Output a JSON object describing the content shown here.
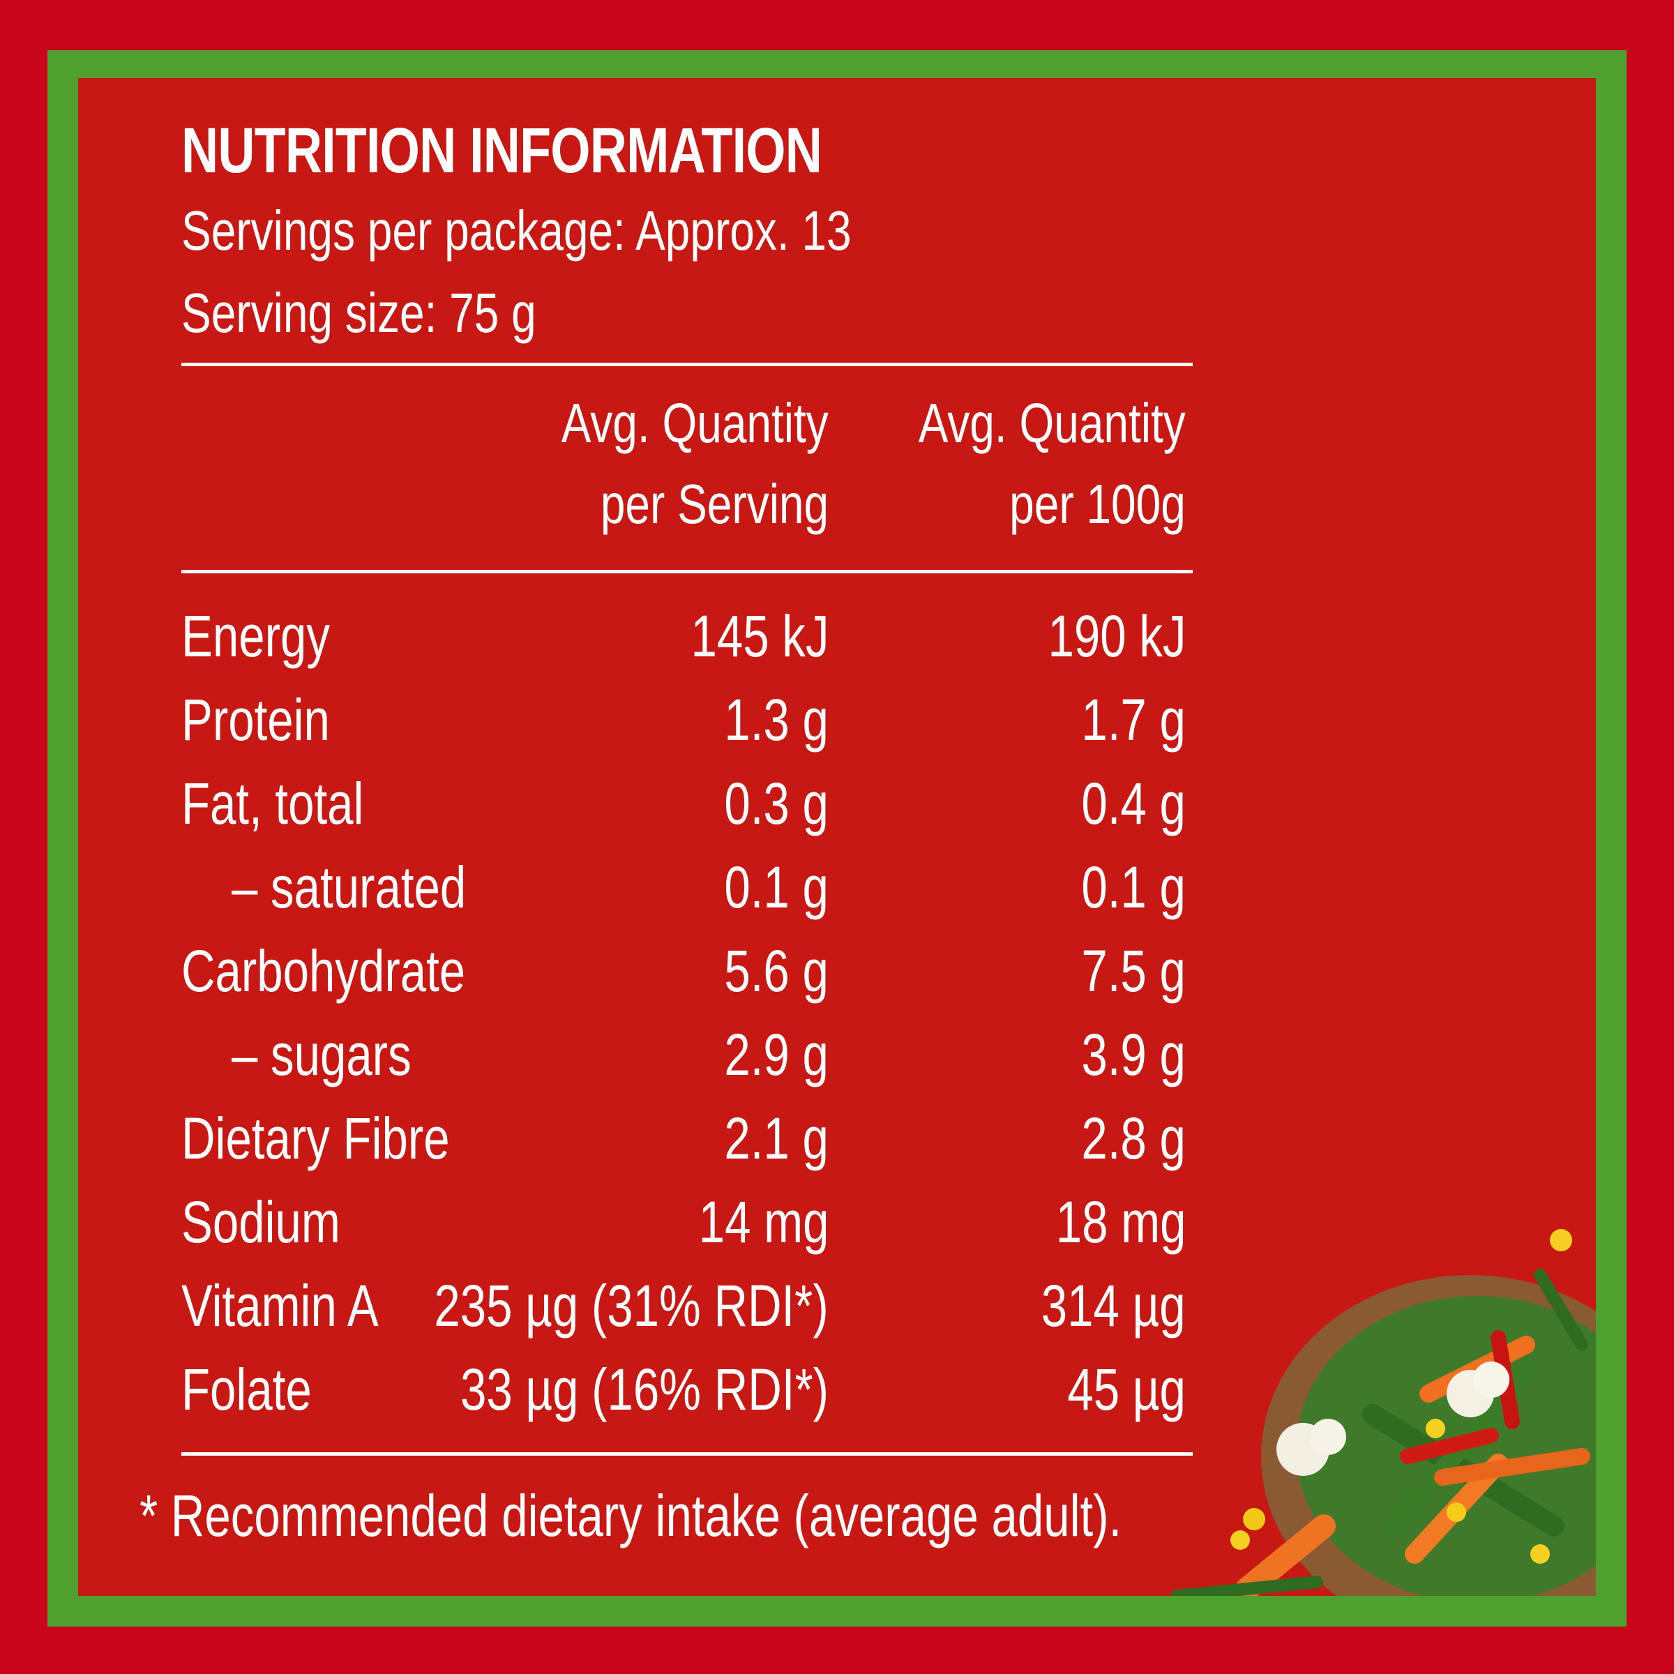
{
  "title": "NUTRITION INFORMATION",
  "servings_per_package": "Servings per package: Approx. 13",
  "serving_size": "Serving size: 75 g",
  "columns": {
    "per_serving_line1": "Avg. Quantity",
    "per_serving_line2": "per Serving",
    "per_100g_line1": "Avg. Quantity",
    "per_100g_line2": "per 100g"
  },
  "rows": [
    {
      "label": "Energy",
      "serving": "145 kJ",
      "per100": "190 kJ"
    },
    {
      "label": "Protein",
      "serving": "1.3 g",
      "per100": "1.7 g"
    },
    {
      "label": "Fat, total",
      "serving": "0.3 g",
      "per100": "0.4 g"
    },
    {
      "label": "– saturated",
      "serving": "0.1 g",
      "per100": "0.1 g"
    },
    {
      "label": "Carbohydrate",
      "serving": "5.6 g",
      "per100": "7.5 g"
    },
    {
      "label": "– sugars",
      "serving": "2.9 g",
      "per100": "3.9 g"
    },
    {
      "label": "Dietary Fibre",
      "serving": "2.1 g",
      "per100": "2.8 g"
    },
    {
      "label": "Sodium",
      "serving": "14 mg",
      "per100": "18 mg"
    },
    {
      "label": "Vitamin A",
      "serving": "235 µg (31% RDI*)",
      "per100": "314 µg"
    },
    {
      "label": "Folate",
      "serving": "33 µg (16% RDI*)",
      "per100": "45 µg"
    }
  ],
  "footnote": "* Recommended dietary intake (average adult).",
  "colors": {
    "outer_background": "#c8051b",
    "border": "#50a030",
    "panel": "#c81814",
    "text": "#ffffff"
  },
  "decoration": "vegetable-bowl-icon"
}
